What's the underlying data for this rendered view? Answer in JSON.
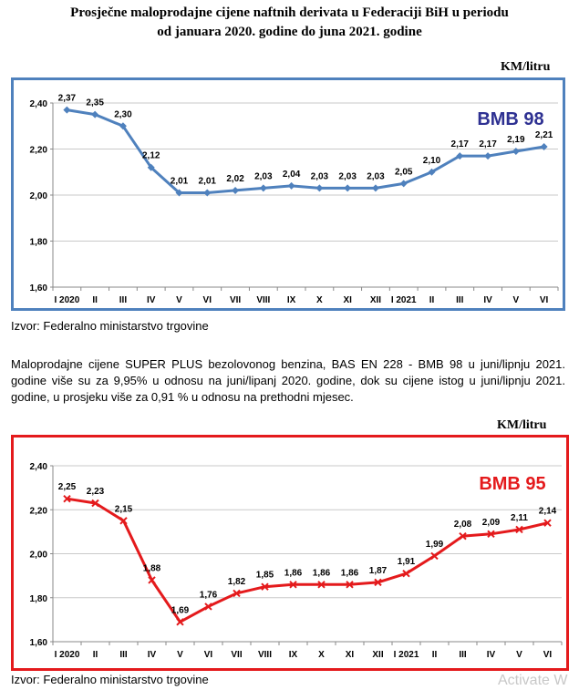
{
  "title_line1": "Prosječne maloprodajne cijene naftnih derivata u Federaciji BiH u periodu",
  "title_line2": "od januara 2020. godine do juna 2021. godine",
  "paragraph": "Maloprodajne cijene SUPER PLUS bezolovonog benzina, BAS EN 228 - BMB 98 u juni/lipnju 2021. godine više su za 9,95% u odnosu na juni/lipanj 2020. godine, dok su cijene istog u juni/lipnju 2021. godine, u prosjeku više za 0,91 % u odnosu na prethodni mjesec.",
  "watermark": "Activate W",
  "chart_data": [
    {
      "type": "line",
      "title": "BMB 98",
      "ylabel": "KM/litru",
      "source": "Izvor: Federalno ministarstvo trgovine",
      "color": "#4f81bd",
      "label_color": "#2e3192",
      "frame_color": "#4f81bd",
      "categories": [
        "I 2020",
        "II",
        "III",
        "IV",
        "V",
        "VI",
        "VII",
        "VIII",
        "IX",
        "X",
        "XI",
        "XII",
        "I 2021",
        "II",
        "III",
        "IV",
        "V",
        "VI"
      ],
      "values": [
        2.37,
        2.35,
        2.3,
        2.12,
        2.01,
        2.01,
        2.02,
        2.03,
        2.04,
        2.03,
        2.03,
        2.03,
        2.05,
        2.1,
        2.17,
        2.17,
        2.19,
        2.21
      ],
      "value_labels": [
        "2,37",
        "2,35",
        "2,30",
        "2,12",
        "2,01",
        "2,01",
        "2,02",
        "2,03",
        "2,04",
        "2,03",
        "2,03",
        "2,03",
        "2,05",
        "2,10",
        "2,17",
        "2,17",
        "2,19",
        "2,21"
      ],
      "ylim": [
        1.6,
        2.4
      ],
      "yticks": [
        1.6,
        1.8,
        2.0,
        2.2,
        2.4
      ],
      "ytick_labels": [
        "1,60",
        "1,80",
        "2,00",
        "2,20",
        "2,40"
      ],
      "grid": true
    },
    {
      "type": "line",
      "title": "BMB 95",
      "ylabel": "KM/litru",
      "source": "Izvor: Federalno ministarstvo trgovine",
      "color": "#e41a1c",
      "label_color": "#e41a1c",
      "frame_color": "#e41a1c",
      "categories": [
        "I 2020",
        "II",
        "III",
        "IV",
        "V",
        "VI",
        "VII",
        "VIII",
        "IX",
        "X",
        "XI",
        "XII",
        "I 2021",
        "II",
        "III",
        "IV",
        "V",
        "VI"
      ],
      "values": [
        2.25,
        2.23,
        2.15,
        1.88,
        1.69,
        1.76,
        1.82,
        1.85,
        1.86,
        1.86,
        1.86,
        1.87,
        1.91,
        1.99,
        2.08,
        2.09,
        2.11,
        2.14
      ],
      "value_labels": [
        "2,25",
        "2,23",
        "2,15",
        "1,88",
        "1,69",
        "1,76",
        "1,82",
        "1,85",
        "1,86",
        "1,86",
        "1,86",
        "1,87",
        "1,91",
        "1,99",
        "2,08",
        "2,09",
        "2,11",
        "2,14"
      ],
      "ylim": [
        1.6,
        2.4
      ],
      "yticks": [
        1.6,
        1.8,
        2.0,
        2.2,
        2.4
      ],
      "ytick_labels": [
        "1,60",
        "1,80",
        "2,00",
        "2,20",
        "2,40"
      ],
      "grid": true
    }
  ]
}
